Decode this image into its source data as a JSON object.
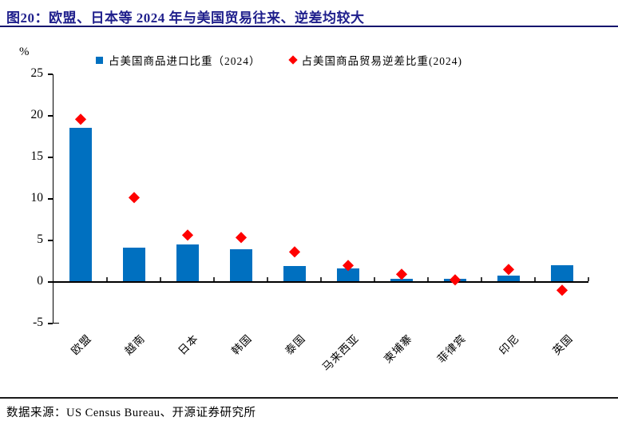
{
  "title": "图20：欧盟、日本等 2024 年与美国贸易往来、逆差均较大",
  "footer": "数据来源：US Census Bureau、开源证券研究所",
  "colors": {
    "bar_blue": "#0070C0",
    "marker_red": "#FF0000",
    "title_navy": "#1F1F8C",
    "axis_black": "#000000"
  },
  "chart_data": {
    "type": "bar",
    "subtype": "bar-with-diamond-scatter-overlay",
    "unit_label": "%",
    "categories": [
      "欧盟",
      "越南",
      "日本",
      "韩国",
      "泰国",
      "马来西亚",
      "柬埔寨",
      "菲律宾",
      "印尼",
      "英国"
    ],
    "series": [
      {
        "name": "占美国商品进口比重（2024）",
        "type": "bar",
        "color": "#0070C0",
        "values": [
          18.6,
          4.1,
          4.5,
          3.9,
          1.9,
          1.6,
          0.4,
          0.4,
          0.8,
          2.0
        ]
      },
      {
        "name": "占美国商品贸易逆差比重(2024)",
        "type": "scatter",
        "marker": "diamond",
        "color": "#FF0000",
        "values": [
          19.6,
          10.2,
          5.7,
          5.4,
          3.7,
          2.0,
          1.0,
          0.3,
          1.5,
          -1.0
        ]
      }
    ],
    "ylim": [
      -5,
      25
    ],
    "yticks": [
      25,
      20,
      15,
      10,
      5,
      0,
      -5
    ],
    "grid": false,
    "legend_position": "top"
  }
}
